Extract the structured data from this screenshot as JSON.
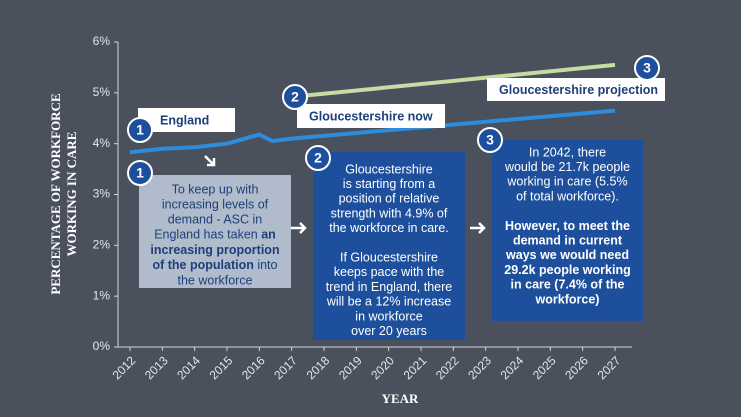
{
  "chart_data": {
    "type": "line",
    "y_label": [
      "PERCENTAGE OF WORKFORCE",
      "WORKING IN CARE"
    ],
    "x_label": "YEAR",
    "xlim": [
      2012,
      2027
    ],
    "xticks": [
      2012,
      2013,
      2014,
      2015,
      2016,
      2017,
      2018,
      2019,
      2020,
      2021,
      2022,
      2023,
      2024,
      2025,
      2026,
      2027
    ],
    "ylim": [
      0,
      6
    ],
    "yticks": [
      {
        "value": 0,
        "label": "0%"
      },
      {
        "value": 1,
        "label": "1%"
      },
      {
        "value": 2,
        "label": "2%"
      },
      {
        "value": 3,
        "label": "3%"
      },
      {
        "value": 4,
        "label": "4%"
      },
      {
        "value": 5,
        "label": "5%"
      },
      {
        "value": 6,
        "label": "6%"
      }
    ],
    "series": [
      {
        "name": "England",
        "color": "#2d8cdb",
        "x": [
          2012,
          2013,
          2014,
          2015,
          2016,
          2016.4,
          2017,
          2027
        ],
        "values": [
          3.83,
          3.9,
          3.93,
          4.0,
          4.18,
          4.05,
          4.1,
          4.65
        ]
      },
      {
        "name": "Gloucestershire projection",
        "color": "#c5dca2",
        "x": [
          2017,
          2027
        ],
        "values": [
          4.92,
          5.55
        ]
      }
    ],
    "callouts": [
      {
        "number": "1",
        "label": "England"
      },
      {
        "number": "2",
        "label": "Gloucestershire now"
      },
      {
        "number": "3",
        "label": "Gloucestershire projection"
      }
    ],
    "notes": [
      {
        "number": "1",
        "paragraphs": [
          {
            "bold": false,
            "lines": [
              "To keep up with",
              "increasing levels of",
              "demand - ASC in",
              [
                {
                  "text": "England has taken ",
                  "bold": false
                },
                {
                  "text": "an",
                  "bold": true
                }
              ],
              [
                {
                  "text": "increasing proportion",
                  "bold": true
                }
              ],
              [
                {
                  "text": "of the population",
                  "bold": true
                },
                {
                  "text": " into",
                  "bold": false
                }
              ],
              "the workforce"
            ]
          }
        ]
      },
      {
        "number": "2",
        "paragraphs": [
          {
            "bold": false,
            "lines": [
              "Gloucestershire",
              "is starting from a",
              "position of relative",
              "strength with 4.9% of",
              "the workforce in care."
            ]
          },
          {
            "bold": false,
            "lines": [
              "If Gloucestershire",
              "keeps pace with the",
              "trend in England, there",
              "will be a 12% increase",
              "in workforce",
              "over 20 years"
            ]
          }
        ]
      },
      {
        "number": "3",
        "paragraphs": [
          {
            "bold": false,
            "lines": [
              "In 2042, there",
              "would be 21.7k people",
              "working in care (5.5%",
              "of total workforce)."
            ]
          },
          {
            "bold": true,
            "lines": [
              "However, to meet the",
              "demand in current",
              "ways we would need",
              "29.2k people working",
              "in care (7.4% of the",
              "workforce)"
            ]
          }
        ]
      }
    ]
  }
}
